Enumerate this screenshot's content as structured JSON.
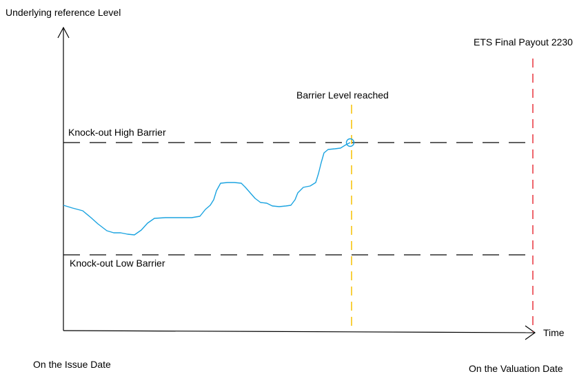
{
  "labels": {
    "y_axis": "Underlying reference Level",
    "x_axis": "Time",
    "start": "On the Issue Date",
    "end": "On the Valuation Date",
    "high_barrier": "Knock-out High Barrier",
    "low_barrier": "Knock-out Low Barrier",
    "barrier_event": "Barrier Level reached",
    "payout": "ETS Final Payout 2230"
  },
  "colors": {
    "axis": "#000000",
    "barrier_line": "#000000",
    "price_path": "#1aa3e0",
    "event_line": "#f5c000",
    "payout_line": "#e8323c"
  }
}
